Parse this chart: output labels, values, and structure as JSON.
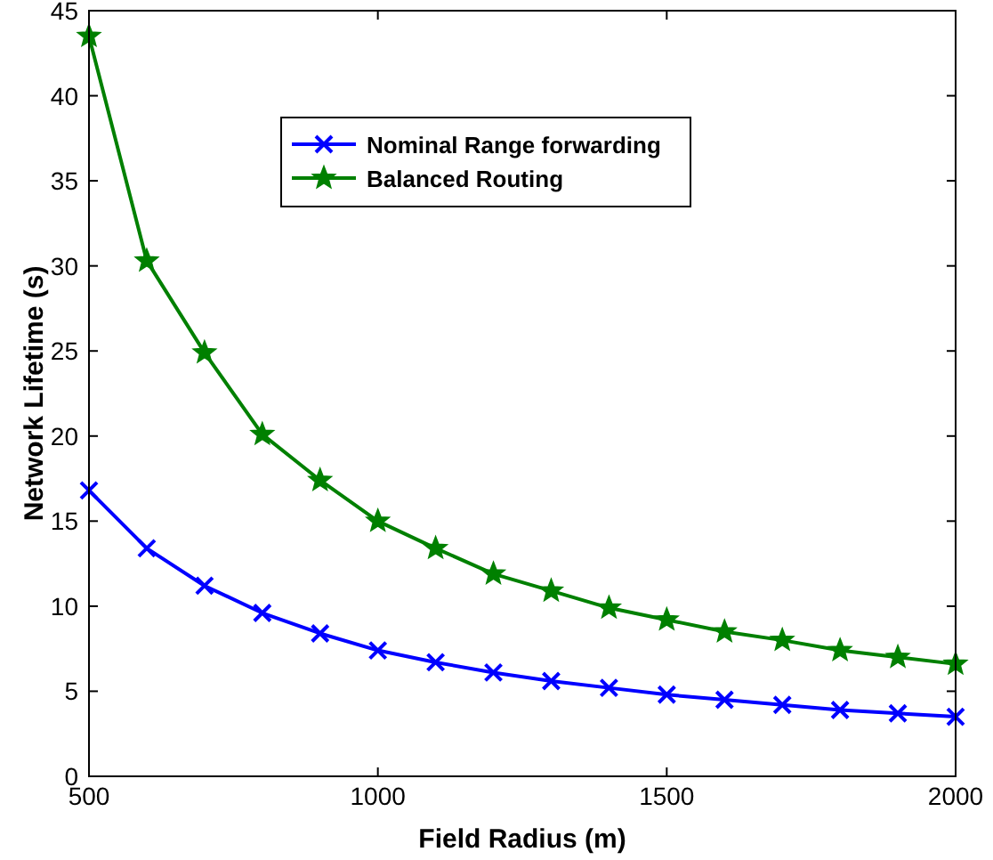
{
  "chart_data": {
    "type": "line",
    "xlabel": "Field Radius (m)",
    "ylabel": "Network Lifetime (s)",
    "x": [
      500,
      600,
      700,
      800,
      900,
      1000,
      1100,
      1200,
      1300,
      1400,
      1500,
      1600,
      1700,
      1800,
      1900,
      2000
    ],
    "series": [
      {
        "name": "Nominal Range forwarding",
        "color": "#0000ff",
        "marker": "cross",
        "values": [
          16.8,
          13.4,
          11.2,
          9.6,
          8.4,
          7.4,
          6.7,
          6.1,
          5.6,
          5.2,
          4.8,
          4.5,
          4.2,
          3.9,
          3.7,
          3.5
        ]
      },
      {
        "name": "Balanced Routing",
        "color": "#008000",
        "marker": "star",
        "values": [
          43.5,
          30.3,
          24.9,
          20.1,
          17.4,
          15.0,
          13.4,
          11.9,
          10.9,
          9.9,
          9.2,
          8.5,
          8.0,
          7.4,
          7.0,
          6.6
        ]
      }
    ],
    "xlim": [
      500,
      2000
    ],
    "xticks": [
      500,
      1000,
      1500,
      2000
    ],
    "ylim": [
      0,
      45
    ],
    "yticks": [
      0,
      5,
      10,
      15,
      20,
      25,
      30,
      35,
      40,
      45
    ],
    "grid": false,
    "legend": "top",
    "line_style": "solid"
  }
}
